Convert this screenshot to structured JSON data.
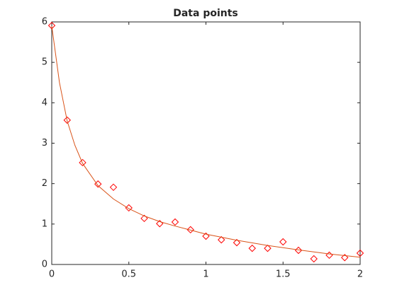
{
  "chart_data": {
    "type": "line",
    "title": "Data points",
    "series": [
      {
        "color": "#ff0000",
        "marker": "diamond",
        "line": false,
        "x": [
          0,
          0.1,
          0.2,
          0.3,
          0.4,
          0.5,
          0.6,
          0.7,
          0.8,
          0.9,
          1.0,
          1.1,
          1.2,
          1.3,
          1.4,
          1.5,
          1.6,
          1.7,
          1.8,
          1.9,
          2.0
        ],
        "values": [
          5.91,
          3.57,
          2.52,
          1.99,
          1.91,
          1.4,
          1.14,
          1.01,
          1.05,
          0.86,
          0.7,
          0.61,
          0.54,
          0.4,
          0.4,
          0.56,
          0.35,
          0.14,
          0.23,
          0.17,
          0.28
        ]
      },
      {
        "color": "#d95319",
        "marker": "none",
        "line": true,
        "x": [
          0,
          0.05,
          0.1,
          0.15,
          0.2,
          0.3,
          0.4,
          0.5,
          0.6,
          0.7,
          0.8,
          0.9,
          1.0,
          1.2,
          1.4,
          1.6,
          1.8,
          2.0
        ],
        "values": [
          5.9,
          4.5,
          3.55,
          2.95,
          2.5,
          1.95,
          1.62,
          1.38,
          1.2,
          1.06,
          0.95,
          0.85,
          0.75,
          0.6,
          0.47,
          0.36,
          0.26,
          0.18
        ]
      }
    ],
    "xlim": [
      0,
      2
    ],
    "xticks": [
      0,
      0.5,
      1,
      1.5,
      2
    ],
    "ylim": [
      0,
      6
    ],
    "yticks": [
      0,
      1,
      2,
      3,
      4,
      5,
      6
    ],
    "grid": false,
    "box": true
  }
}
